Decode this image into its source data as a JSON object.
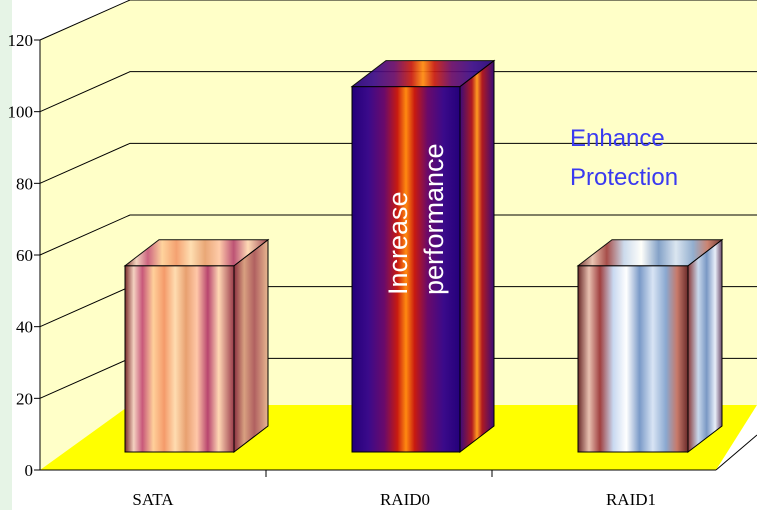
{
  "chart_data": {
    "type": "bar",
    "style": "3d-column",
    "categories": [
      "SATA",
      "RAID0",
      "RAID1"
    ],
    "values": [
      57,
      107,
      57
    ],
    "ylim": [
      0,
      120
    ],
    "yticks": [
      0,
      20,
      40,
      60,
      80,
      100,
      120
    ],
    "title": "",
    "xlabel": "",
    "ylabel": "",
    "grid": true,
    "annotations": [
      {
        "text_lines": [
          "Increase",
          "performance"
        ],
        "target": "RAID0",
        "orientation": "vertical"
      },
      {
        "text_lines": [
          "Enhance",
          "Protection"
        ],
        "target": "RAID1"
      }
    ],
    "colors": {
      "back_wall": "#ffffc8",
      "floor": "#ffff00",
      "page_left_strip": "#e6f4e6",
      "annotation_blue": "#3a3af0"
    }
  }
}
